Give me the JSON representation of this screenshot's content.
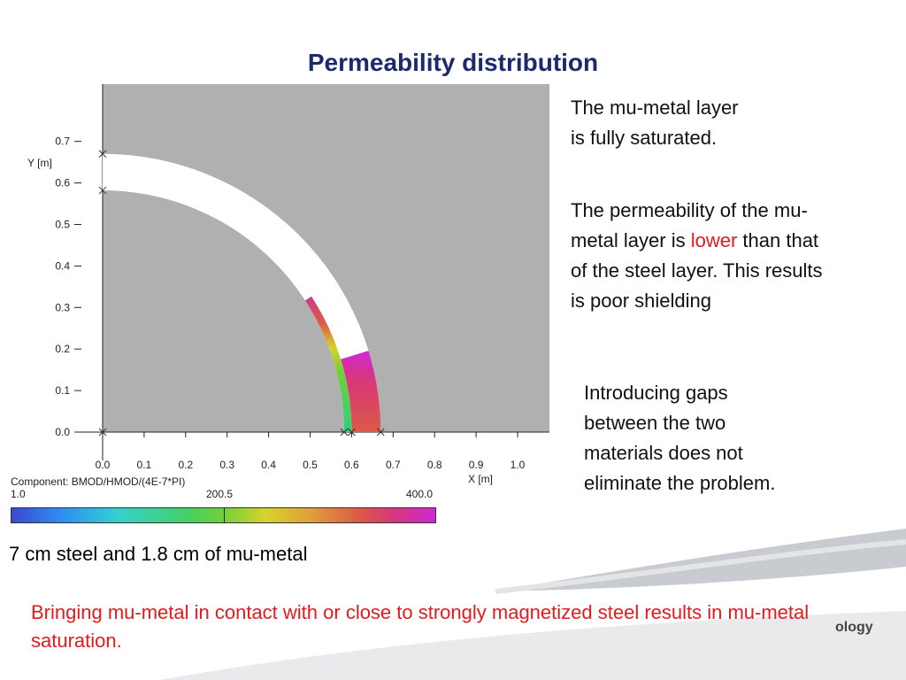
{
  "title": "Permeability distribution",
  "chart_data": {
    "type": "heatmap",
    "title": "",
    "xlabel": "X [m]",
    "ylabel": "Y [m]",
    "xlim": [
      0.0,
      1.0
    ],
    "ylim": [
      0.0,
      0.7
    ],
    "x_ticks": [
      "0.0",
      "0.1",
      "0.2",
      "0.3",
      "0.4",
      "0.5",
      "0.6",
      "0.7",
      "0.8",
      "0.9",
      "1.0"
    ],
    "y_ticks": [
      "0.0",
      "0.1",
      "0.2",
      "0.3",
      "0.4",
      "0.5",
      "0.6",
      "0.7"
    ],
    "component_label": "Component: BMOD/HMOD/(4E-7*PI)",
    "colorbar": {
      "min": "1.0",
      "mid": "200.5",
      "max": "400.0",
      "range": [
        1.0,
        400.0
      ]
    },
    "layers": [
      {
        "name": "mu-metal",
        "inner_radius": 0.582,
        "outer_radius": 0.6,
        "angle_visible_deg": [
          0,
          33
        ],
        "value_range": [
          150,
          300
        ]
      },
      {
        "name": "steel",
        "inner_radius": 0.6,
        "outer_radius": 0.67,
        "angle_visible_deg": [
          0,
          17
        ],
        "value_range": [
          300,
          400
        ]
      },
      {
        "name": "air gap region (unpopulated)",
        "inner_radius": 0.582,
        "outer_radius": 0.67,
        "angle_visible_deg": [
          0,
          90
        ],
        "value_range": null
      }
    ],
    "grid": false
  },
  "caption": "7 cm steel and 1.8 cm of mu-metal",
  "side_text_1": "The mu-metal layer is fully saturated.",
  "side_text_2_a": "The permeability of the mu-metal layer is",
  "side_text_2_red": "lower",
  "side_text_2_b": "than that of the steel layer. This results is poor shielding",
  "side_text_3": "Introducing gaps between the two materials does not eliminate the problem.",
  "bottom_text": "Bringing mu-metal in contact with or close to strongly magnetized steel results in mu-metal saturation.",
  "logo_text": "ology",
  "colors": {
    "title": "#1a2a6c",
    "emphasis": "#e41a1c",
    "plot_bg": "#b0b0b0"
  }
}
